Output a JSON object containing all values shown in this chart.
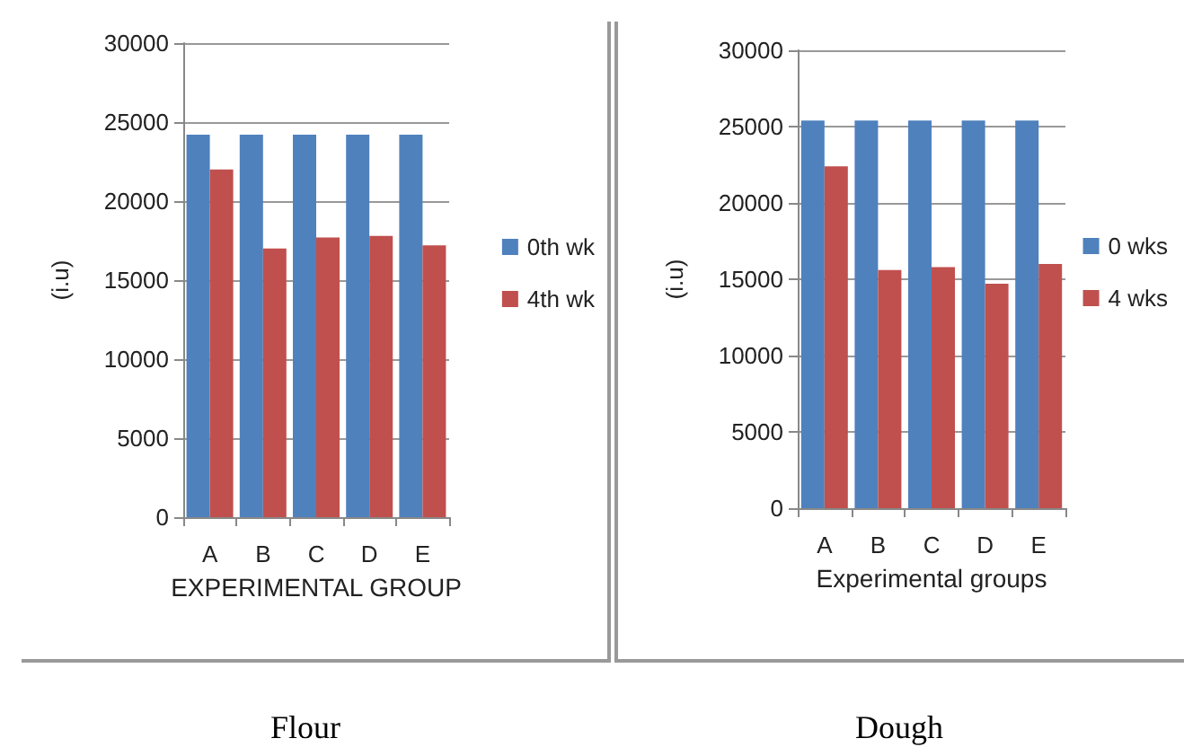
{
  "chart_data": [
    {
      "type": "bar",
      "title": "Flour",
      "xlabel": "EXPERIMENTAL GROUP",
      "ylabel": "(i.u)",
      "categories": [
        "A",
        "B",
        "C",
        "D",
        "E"
      ],
      "series": [
        {
          "name": "0th wk",
          "color": "#4f81bd",
          "values": [
            24200,
            24200,
            24200,
            24200,
            24200
          ]
        },
        {
          "name": "4th wk",
          "color": "#c0504d",
          "values": [
            22000,
            17000,
            17700,
            17800,
            17200
          ]
        }
      ],
      "ylim": [
        0,
        30000
      ],
      "yticks": [
        0,
        5000,
        10000,
        15000,
        20000,
        25000,
        30000
      ],
      "grid": "y",
      "legend": "right"
    },
    {
      "type": "bar",
      "title": "Dough",
      "xlabel": "Experimental groups",
      "ylabel": "(i.u)",
      "categories": [
        "A",
        "B",
        "C",
        "D",
        "E"
      ],
      "series": [
        {
          "name": "0 wks",
          "color": "#4f81bd",
          "values": [
            25400,
            25400,
            25400,
            25400,
            25400
          ]
        },
        {
          "name": "4 wks",
          "color": "#c0504d",
          "values": [
            22400,
            15600,
            15800,
            14700,
            16000
          ]
        }
      ],
      "ylim": [
        0,
        30000
      ],
      "yticks": [
        0,
        5000,
        10000,
        15000,
        20000,
        25000,
        30000
      ],
      "grid": "y",
      "legend": "right"
    }
  ]
}
